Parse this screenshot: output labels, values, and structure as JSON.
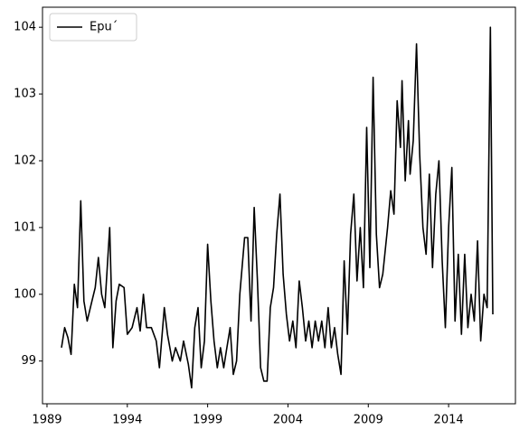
{
  "chart_data": {
    "type": "line",
    "series": [
      {
        "name": "Epu´",
        "color": "#000000",
        "x": [
          1989.9,
          1990.1,
          1990.3,
          1990.5,
          1990.7,
          1990.9,
          1991.1,
          1991.3,
          1991.5,
          1991.8,
          1992.0,
          1992.2,
          1992.4,
          1992.6,
          1992.9,
          1993.1,
          1993.3,
          1993.5,
          1993.8,
          1994.0,
          1994.3,
          1994.6,
          1994.8,
          1995.0,
          1995.2,
          1995.5,
          1995.8,
          1996.0,
          1996.3,
          1996.5,
          1996.8,
          1997.0,
          1997.3,
          1997.5,
          1997.8,
          1998.0,
          1998.2,
          1998.4,
          1998.6,
          1998.8,
          1999.0,
          1999.2,
          1999.4,
          1999.6,
          1999.8,
          2000.0,
          2000.2,
          2000.4,
          2000.6,
          2000.8,
          2001.0,
          2001.3,
          2001.5,
          2001.7,
          2001.9,
          2002.1,
          2002.3,
          2002.5,
          2002.7,
          2002.9,
          2003.1,
          2003.3,
          2003.5,
          2003.7,
          2003.9,
          2004.1,
          2004.3,
          2004.5,
          2004.7,
          2004.9,
          2005.1,
          2005.3,
          2005.5,
          2005.7,
          2005.9,
          2006.1,
          2006.3,
          2006.5,
          2006.7,
          2006.9,
          2007.1,
          2007.3,
          2007.5,
          2007.7,
          2007.9,
          2008.1,
          2008.3,
          2008.5,
          2008.7,
          2008.9,
          2009.1,
          2009.3,
          2009.5,
          2009.7,
          2009.9,
          2010.2,
          2010.4,
          2010.6,
          2010.8,
          2011.0,
          2011.1,
          2011.3,
          2011.5,
          2011.6,
          2011.8,
          2012.0,
          2012.2,
          2012.4,
          2012.6,
          2012.8,
          2013.0,
          2013.2,
          2013.4,
          2013.6,
          2013.8,
          2014.0,
          2014.2,
          2014.4,
          2014.6,
          2014.8,
          2015.0,
          2015.2,
          2015.4,
          2015.6,
          2015.8,
          2016.0,
          2016.2,
          2016.4,
          2016.6,
          2016.75
        ],
        "values": [
          99.2,
          99.5,
          99.35,
          99.1,
          100.15,
          99.8,
          101.4,
          99.9,
          99.6,
          99.9,
          100.1,
          100.55,
          100.0,
          99.8,
          101.0,
          99.2,
          99.9,
          100.15,
          100.1,
          99.4,
          99.5,
          99.8,
          99.45,
          100.0,
          99.5,
          99.5,
          99.3,
          98.9,
          99.8,
          99.4,
          99.0,
          99.2,
          99.0,
          99.3,
          98.95,
          98.6,
          99.5,
          99.8,
          98.9,
          99.3,
          100.75,
          99.9,
          99.3,
          98.9,
          99.2,
          98.9,
          99.2,
          99.5,
          98.8,
          99.0,
          100.0,
          100.85,
          100.85,
          99.6,
          101.3,
          100.2,
          98.9,
          98.7,
          98.7,
          99.8,
          100.1,
          100.9,
          101.5,
          100.3,
          99.7,
          99.3,
          99.6,
          99.2,
          100.2,
          99.8,
          99.3,
          99.6,
          99.2,
          99.6,
          99.3,
          99.6,
          99.2,
          99.8,
          99.2,
          99.5,
          99.1,
          98.8,
          100.5,
          99.4,
          100.9,
          101.5,
          100.2,
          101.0,
          100.1,
          102.5,
          100.4,
          103.25,
          100.9,
          100.1,
          100.3,
          101.0,
          101.55,
          101.2,
          102.9,
          102.2,
          103.2,
          101.7,
          102.6,
          101.8,
          102.3,
          103.75,
          102.1,
          101.0,
          100.6,
          101.8,
          100.4,
          101.5,
          102.0,
          100.5,
          99.5,
          101.0,
          101.9,
          99.6,
          100.6,
          99.4,
          100.6,
          99.5,
          100.0,
          99.6,
          100.8,
          99.3,
          100.0,
          99.8,
          104.0,
          99.7
        ]
      }
    ],
    "xlim": [
      1988.72,
      2018.16
    ],
    "xticks": [
      1989,
      1994,
      1999,
      2004,
      2009,
      2014
    ],
    "ylim": [
      98.36,
      104.3
    ],
    "yticks": [
      99,
      100,
      101,
      102,
      103,
      104
    ],
    "legend": "upper left"
  }
}
